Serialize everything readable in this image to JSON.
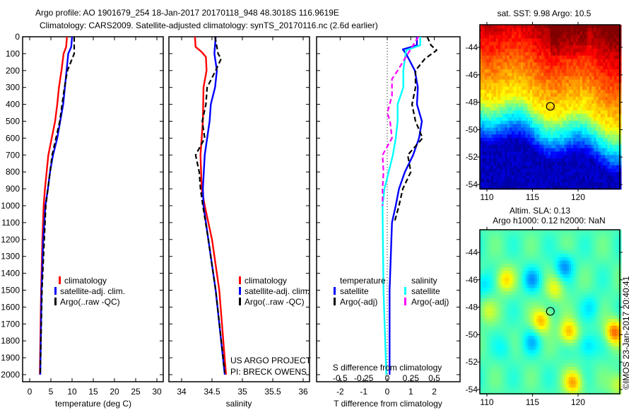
{
  "title": {
    "line1": "Argo profile: AO 1901679_254 18-Jan-2017 20170118_948 48.3018S 116.9619E",
    "line2": "Climatology: CARS2009. Satellite-adjusted climatology: synTS_20170116.nc (2.6d earlier)"
  },
  "chart_data": [
    {
      "type": "line",
      "name": "temperature-profile",
      "xlabel": "temperature (deg C)",
      "ylabel": "depth",
      "xlim": [
        -1.7,
        31.5
      ],
      "ylim": [
        2040,
        0
      ],
      "xticks": [
        "0",
        "5",
        "10",
        "15",
        "20",
        "25",
        "30"
      ],
      "xtick_values": [
        0,
        5,
        10,
        15,
        20,
        25,
        30
      ],
      "yticks": [
        "0",
        "100",
        "200",
        "300",
        "400",
        "500",
        "600",
        "700",
        "800",
        "900",
        "1000",
        "1100",
        "1200",
        "1300",
        "1400",
        "1500",
        "1600",
        "1700",
        "1800",
        "1900",
        "2000"
      ],
      "legend": [
        "climatology",
        "satellite-adj. clim.",
        "Argo(..raw -QC)"
      ],
      "series": [
        {
          "name": "climatology",
          "color": "#ff0000",
          "depth": [
            0,
            60,
            100,
            200,
            300,
            400,
            500,
            600,
            700,
            800,
            900,
            1000,
            1200,
            1500,
            2000
          ],
          "values": [
            8.8,
            8.6,
            8.0,
            7.5,
            6.9,
            6.5,
            6.0,
            5.2,
            4.4,
            4.0,
            3.6,
            3.3,
            3.0,
            2.7,
            2.4
          ]
        },
        {
          "name": "satellite-adj. clim.",
          "color": "#0000ff",
          "depth": [
            0,
            60,
            100,
            200,
            300,
            400,
            500,
            600,
            700,
            800,
            900,
            1000,
            1200,
            1500,
            2000
          ],
          "values": [
            10.0,
            9.8,
            9.1,
            8.7,
            8.3,
            7.9,
            7.2,
            6.5,
            5.5,
            4.8,
            4.3,
            3.7,
            3.2,
            2.8,
            2.5
          ]
        },
        {
          "name": "Argo(..raw -QC)",
          "color": "#000000",
          "depth": [
            0,
            100,
            150,
            200,
            300,
            500,
            700,
            1000,
            1500,
            1990
          ],
          "values": [
            10.5,
            10.5,
            9.7,
            8.9,
            8.2,
            7.1,
            5.3,
            3.8,
            2.9,
            2.5
          ]
        }
      ]
    },
    {
      "type": "line",
      "name": "salinity-profile",
      "xlabel": "salinity",
      "ylim": [
        2040,
        0
      ],
      "xlim": [
        33.79,
        36.1
      ],
      "xticks": [
        "34",
        "34.5",
        "35",
        "35.5",
        "36"
      ],
      "xtick_values": [
        34,
        34.5,
        35,
        35.5,
        36
      ],
      "legend": [
        "climatology",
        "satellite-adj. clim.",
        "Argo(..raw -QC)"
      ],
      "annotation": [
        "US ARGO PROJECT",
        "PI: BRECK OWENS"
      ],
      "series": [
        {
          "name": "climatology",
          "color": "#ff0000",
          "depth": [
            0,
            60,
            90,
            120,
            200,
            300,
            500,
            700,
            900,
            1000,
            1200,
            1500,
            2000
          ],
          "values": [
            34.22,
            34.23,
            34.33,
            34.4,
            34.41,
            34.36,
            34.35,
            34.31,
            34.33,
            34.38,
            34.5,
            34.62,
            34.73
          ]
        },
        {
          "name": "satellite-adj. clim.",
          "color": "#0000ff",
          "depth": [
            0,
            100,
            200,
            300,
            400,
            500,
            700,
            900,
            1000,
            1200,
            1500,
            2000
          ],
          "values": [
            34.56,
            34.54,
            34.58,
            34.55,
            34.48,
            34.46,
            34.38,
            34.35,
            34.36,
            34.44,
            34.56,
            34.71
          ]
        },
        {
          "name": "Argo(..raw -QC)",
          "color": "#000000",
          "depth": [
            0,
            100,
            130,
            200,
            300,
            400,
            500,
            600,
            700,
            800,
            900,
            1000,
            1200,
            1500,
            1990
          ],
          "values": [
            34.55,
            34.6,
            34.65,
            34.56,
            34.42,
            34.4,
            34.34,
            34.38,
            34.23,
            34.29,
            34.31,
            34.35,
            34.44,
            34.56,
            34.71
          ]
        }
      ]
    },
    {
      "type": "line",
      "name": "difference-profile",
      "xlabel": "T difference from climatology",
      "x2label": "S difference from climatology",
      "ylim": [
        2040,
        0
      ],
      "xlim": [
        -3,
        3.1
      ],
      "xticks": [
        "-2",
        "-1",
        "0",
        "1",
        "2"
      ],
      "xtick_values": [
        -2,
        -1,
        0,
        1,
        2
      ],
      "x2ticks": [
        "-0.5",
        "-0.25",
        "0",
        "0.25",
        "0.5"
      ],
      "x2tick_values": [
        -0.5,
        -0.25,
        0,
        0.25,
        0.5
      ],
      "legend_temperature_title": "temperature",
      "legend_salinity_title": "salinity",
      "legend": [
        "satellite",
        "Argo(-adj)",
        "satellite",
        "Argo(-adj)"
      ],
      "series": [
        {
          "name": "temperature satellite",
          "axis": "T",
          "color": "#0000ff",
          "depth": [
            0,
            50,
            75,
            100,
            200,
            300,
            400,
            500,
            600,
            700,
            800,
            900,
            1000,
            1100,
            1500,
            2000
          ],
          "values": [
            1.26,
            1.26,
            0.66,
            0.8,
            1.17,
            1.3,
            1.26,
            1.47,
            1.35,
            1.1,
            0.75,
            0.5,
            0.36,
            0.2,
            0.1,
            0.1
          ]
        },
        {
          "name": "temperature Argo(-adj)",
          "axis": "T",
          "color": "#000000",
          "depth": [
            0,
            50,
            80,
            130,
            200,
            300,
            400,
            500,
            600,
            700,
            800,
            900,
            1000,
            1100
          ],
          "values": [
            1.7,
            1.86,
            2.1,
            1.6,
            1.2,
            1.2,
            1.05,
            1.2,
            1.5,
            0.87,
            1.0,
            0.66,
            0.5,
            0.3
          ]
        },
        {
          "name": "salinity satellite",
          "axis": "S",
          "color": "#00ffff",
          "depth": [
            0,
            50,
            80,
            200,
            300,
            400,
            500,
            600,
            700,
            800,
            900,
            1000,
            1500,
            2000
          ],
          "values": [
            0.35,
            0.35,
            0.2,
            0.17,
            0.17,
            0.11,
            0.11,
            0.09,
            0.06,
            0.015,
            -0.03,
            -0.05,
            -0.04,
            -0.01
          ]
        },
        {
          "name": "salinity Argo(-adj)",
          "axis": "S",
          "color": "#ff00ff",
          "depth": [
            0,
            100,
            200,
            250,
            350,
            450,
            500,
            600,
            700,
            800,
            900,
            1000
          ],
          "values": [
            0.33,
            0.22,
            0.11,
            0.05,
            0.05,
            0.0,
            0.03,
            0.05,
            -0.05,
            -0.04,
            -0.05,
            -0.05
          ]
        }
      ]
    },
    {
      "type": "heatmap",
      "name": "sst-map",
      "title": "sat. SST: 9.98 Argo: 10.5",
      "xticks": [
        "110",
        "115",
        "120"
      ],
      "xtick_values": [
        110,
        115,
        120
      ],
      "yticks": [
        "-44",
        "-46",
        "-48",
        "-50",
        "-52",
        "-54"
      ],
      "ytick_values": [
        -44,
        -46,
        -48,
        -50,
        -52,
        -54
      ],
      "marker": {
        "lon": 116.9619,
        "lat": -48.3018
      }
    },
    {
      "type": "heatmap",
      "name": "sla-map",
      "title": "Altim. SLA: 0.13",
      "subtitle": "Argo h1000: 0.12 h2000: NaN",
      "xticks": [
        "110",
        "115",
        "120"
      ],
      "xtick_values": [
        110,
        115,
        120
      ],
      "yticks": [
        "-44",
        "-46",
        "-48",
        "-50",
        "-52",
        "-54"
      ],
      "ytick_values": [
        -44,
        -46,
        -48,
        -50,
        -52,
        -54
      ],
      "marker": {
        "lon": 116.9619,
        "lat": -48.3018
      },
      "credit": "©IMOS 23-Jan-2017 20:40:41"
    }
  ]
}
